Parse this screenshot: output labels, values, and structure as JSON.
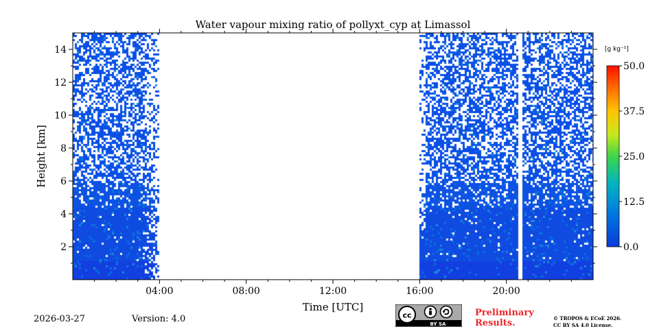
{
  "chart_data": {
    "type": "heatmap",
    "title": "Water vapour mixing ratio of pollyxt_cyp at Limassol",
    "xlabel": "Time [UTC]",
    "ylabel": "Height [km]",
    "xlim": [
      0,
      24
    ],
    "ylim": [
      0,
      15
    ],
    "xticks": [
      {
        "value": 4,
        "label": "04:00"
      },
      {
        "value": 8,
        "label": "08:00"
      },
      {
        "value": 12,
        "label": "12:00"
      },
      {
        "value": 16,
        "label": "16:00"
      },
      {
        "value": 20,
        "label": "20:00"
      }
    ],
    "yticks": [
      {
        "value": 2,
        "label": "2"
      },
      {
        "value": 4,
        "label": "4"
      },
      {
        "value": 6,
        "label": "6"
      },
      {
        "value": 8,
        "label": "8"
      },
      {
        "value": 10,
        "label": "10"
      },
      {
        "value": 12,
        "label": "12"
      },
      {
        "value": 14,
        "label": "14"
      }
    ],
    "colorbar": {
      "unit": "[g kg⁻¹]",
      "range": [
        0,
        50
      ],
      "ticks": [
        {
          "value": 0,
          "label": "0.0"
        },
        {
          "value": 12.5,
          "label": "12.5"
        },
        {
          "value": 25,
          "label": "25.0"
        },
        {
          "value": 37.5,
          "label": "37.5"
        },
        {
          "value": 50,
          "label": "50.0"
        }
      ]
    },
    "data_periods": [
      {
        "start": 0,
        "end": 4
      },
      {
        "start": 16,
        "end": 20.55
      },
      {
        "start": 20.75,
        "end": 24
      }
    ],
    "typical_values": {
      "near_surface": 4,
      "mid": 2,
      "upper": 1
    }
  },
  "footer": {
    "date": "2026-03-27",
    "version": "Version: 4.0",
    "license_badge": "BY SA",
    "prelim_line1": "Preliminary",
    "prelim_line2": "Results.",
    "copyright_line1": "© TROPOS & ECoE 2026.",
    "copyright_line2": "CC BY SA 4.0 License."
  },
  "colors": {
    "low": "#0a46d8",
    "high": "#ff1a00",
    "prelim": "#e8282d"
  }
}
